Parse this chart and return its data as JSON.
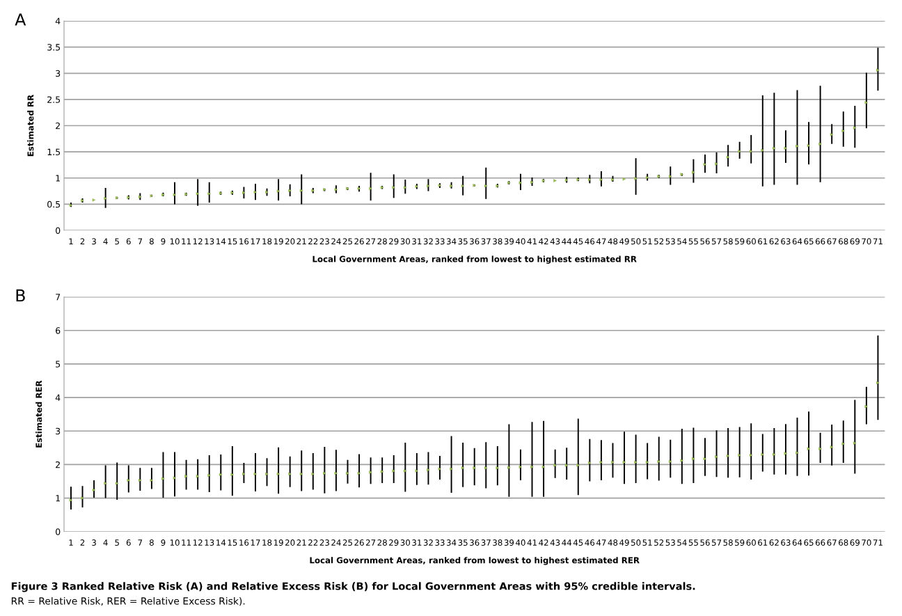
{
  "chart_data": [
    {
      "type": "scatter",
      "title": "A",
      "xlabel": "Local Government Areas, ranked from lowest to highest estimated RR",
      "ylabel": "Estimated RR",
      "categories": [
        "1",
        "2",
        "3",
        "4",
        "5",
        "6",
        "7",
        "8",
        "9",
        "10",
        "11",
        "12",
        "13",
        "14",
        "15",
        "16",
        "17",
        "18",
        "19",
        "20",
        "21",
        "22",
        "23",
        "24",
        "25",
        "26",
        "27",
        "28",
        "29",
        "30",
        "31",
        "32",
        "33",
        "34",
        "35",
        "36",
        "37",
        "38",
        "39",
        "40",
        "41",
        "42",
        "43",
        "44",
        "45",
        "46",
        "47",
        "48",
        "49",
        "50",
        "51",
        "52",
        "53",
        "54",
        "55",
        "56",
        "57",
        "58",
        "59",
        "60",
        "61",
        "62",
        "63",
        "64",
        "65",
        "66",
        "67",
        "68",
        "69",
        "70",
        "71"
      ],
      "series": [
        {
          "color": "#9bbb59",
          "values": [
            0.48,
            0.57,
            0.58,
            0.61,
            0.62,
            0.63,
            0.64,
            0.66,
            0.68,
            0.68,
            0.69,
            0.7,
            0.7,
            0.71,
            0.72,
            0.72,
            0.73,
            0.73,
            0.75,
            0.76,
            0.76,
            0.76,
            0.78,
            0.78,
            0.8,
            0.8,
            0.8,
            0.82,
            0.82,
            0.82,
            0.84,
            0.85,
            0.86,
            0.85,
            0.85,
            0.86,
            0.85,
            0.85,
            0.91,
            0.91,
            0.92,
            0.95,
            0.95,
            0.96,
            0.97,
            0.97,
            0.97,
            0.97,
            0.98,
            0.99,
            1.01,
            1.03,
            1.03,
            1.07,
            1.11,
            1.26,
            1.27,
            1.4,
            1.51,
            1.51,
            1.53,
            1.57,
            1.57,
            1.61,
            1.62,
            1.65,
            1.83,
            1.9,
            1.96,
            2.44,
            3.06
          ],
          "errors": [
            [
              0.45,
              0.53
            ],
            [
              0.53,
              0.61
            ],
            null,
            [
              0.43,
              0.81
            ],
            [
              0.6,
              0.64
            ],
            [
              0.59,
              0.67
            ],
            [
              0.58,
              0.71
            ],
            [
              0.64,
              0.68
            ],
            [
              0.65,
              0.72
            ],
            [
              0.5,
              0.92
            ],
            [
              0.66,
              0.72
            ],
            [
              0.47,
              0.98
            ],
            [
              0.53,
              0.92
            ],
            [
              0.68,
              0.74
            ],
            [
              0.68,
              0.76
            ],
            [
              0.61,
              0.83
            ],
            [
              0.58,
              0.89
            ],
            [
              0.66,
              0.8
            ],
            [
              0.57,
              0.98
            ],
            [
              0.65,
              0.88
            ],
            [
              0.5,
              1.07
            ],
            [
              0.71,
              0.81
            ],
            [
              0.75,
              0.8
            ],
            [
              0.71,
              0.86
            ],
            [
              0.77,
              0.82
            ],
            [
              0.74,
              0.85
            ],
            [
              0.57,
              1.1
            ],
            [
              0.79,
              0.85
            ],
            [
              0.62,
              1.07
            ],
            [
              0.7,
              0.97
            ],
            [
              0.79,
              0.89
            ],
            [
              0.75,
              0.98
            ],
            [
              0.81,
              0.9
            ],
            [
              0.8,
              0.92
            ],
            [
              0.67,
              1.04
            ],
            [
              0.84,
              0.88
            ],
            [
              0.6,
              1.2
            ],
            [
              0.82,
              0.89
            ],
            [
              0.88,
              0.94
            ],
            [
              0.77,
              1.08
            ],
            [
              0.85,
              1.01
            ],
            [
              0.92,
              0.98
            ],
            null,
            [
              0.91,
              1.02
            ],
            [
              0.94,
              1.01
            ],
            [
              0.9,
              1.06
            ],
            [
              0.84,
              1.13
            ],
            [
              0.93,
              1.04
            ],
            null,
            [
              0.68,
              1.38
            ],
            [
              0.95,
              1.08
            ],
            [
              1.0,
              1.06
            ],
            [
              0.87,
              1.22
            ],
            [
              1.04,
              1.09
            ],
            [
              0.91,
              1.36
            ],
            [
              1.1,
              1.45
            ],
            [
              1.09,
              1.49
            ],
            [
              1.22,
              1.63
            ],
            [
              1.37,
              1.69
            ],
            [
              1.28,
              1.82
            ],
            [
              0.84,
              2.58
            ],
            [
              0.87,
              2.63
            ],
            [
              1.29,
              1.91
            ],
            [
              0.87,
              2.68
            ],
            [
              1.26,
              2.07
            ],
            [
              0.92,
              2.76
            ],
            [
              1.65,
              2.03
            ],
            [
              1.6,
              2.27
            ],
            [
              1.58,
              2.38
            ],
            [
              1.95,
              3.01
            ],
            [
              2.67,
              3.49
            ]
          ]
        }
      ],
      "ylim": [
        0,
        4
      ],
      "yticks": [
        0,
        0.5,
        1,
        1.5,
        2,
        2.5,
        3,
        3.5,
        4
      ],
      "grid": "y",
      "marker": "triangle"
    },
    {
      "type": "scatter",
      "title": "B",
      "xlabel": "Local Government Areas, ranked from lowest to highest estimated RER",
      "ylabel": "Estimated RER",
      "categories": [
        "1",
        "2",
        "3",
        "4",
        "5",
        "6",
        "7",
        "8",
        "9",
        "10",
        "11",
        "12",
        "13",
        "14",
        "15",
        "16",
        "17",
        "18",
        "19",
        "20",
        "21",
        "22",
        "23",
        "24",
        "25",
        "26",
        "27",
        "28",
        "29",
        "30",
        "31",
        "32",
        "33",
        "34",
        "35",
        "36",
        "37",
        "38",
        "39",
        "40",
        "41",
        "42",
        "43",
        "44",
        "45",
        "46",
        "47",
        "48",
        "49",
        "50",
        "51",
        "52",
        "53",
        "54",
        "55",
        "56",
        "57",
        "58",
        "59",
        "60",
        "61",
        "62",
        "63",
        "64",
        "65",
        "66",
        "67",
        "68",
        "69",
        "70",
        "71"
      ],
      "series": [
        {
          "color": "#9bbb59",
          "values": [
            0.94,
            1.0,
            1.24,
            1.44,
            1.44,
            1.53,
            1.53,
            1.53,
            1.58,
            1.6,
            1.65,
            1.65,
            1.68,
            1.7,
            1.7,
            1.72,
            1.72,
            1.72,
            1.72,
            1.72,
            1.72,
            1.72,
            1.74,
            1.74,
            1.74,
            1.74,
            1.77,
            1.79,
            1.81,
            1.81,
            1.81,
            1.84,
            1.87,
            1.87,
            1.9,
            1.9,
            1.9,
            1.9,
            1.91,
            1.93,
            1.93,
            1.93,
            1.98,
            1.98,
            1.98,
            2.05,
            2.07,
            2.07,
            2.07,
            2.07,
            2.07,
            2.09,
            2.09,
            2.12,
            2.17,
            2.17,
            2.23,
            2.26,
            2.28,
            2.28,
            2.3,
            2.3,
            2.33,
            2.35,
            2.47,
            2.47,
            2.52,
            2.62,
            2.64,
            3.73,
            4.44
          ],
          "errors": [
            [
              0.66,
              1.34
            ],
            [
              0.72,
              1.36
            ],
            [
              1.01,
              1.53
            ],
            [
              1.0,
              1.98
            ],
            [
              0.95,
              2.06
            ],
            [
              1.17,
              1.98
            ],
            [
              1.22,
              1.9
            ],
            [
              1.27,
              1.9
            ],
            [
              1.01,
              2.37
            ],
            [
              1.05,
              2.37
            ],
            [
              1.25,
              2.14
            ],
            [
              1.25,
              2.16
            ],
            [
              1.18,
              2.28
            ],
            [
              1.23,
              2.3
            ],
            [
              1.07,
              2.55
            ],
            [
              1.45,
              2.05
            ],
            [
              1.2,
              2.34
            ],
            [
              1.36,
              2.19
            ],
            [
              1.13,
              2.51
            ],
            [
              1.33,
              2.24
            ],
            [
              1.21,
              2.42
            ],
            [
              1.25,
              2.34
            ],
            [
              1.14,
              2.53
            ],
            [
              1.21,
              2.44
            ],
            [
              1.43,
              2.14
            ],
            [
              1.32,
              2.31
            ],
            [
              1.42,
              2.21
            ],
            [
              1.45,
              2.21
            ],
            [
              1.45,
              2.28
            ],
            [
              1.19,
              2.65
            ],
            [
              1.39,
              2.34
            ],
            [
              1.4,
              2.37
            ],
            [
              1.55,
              2.26
            ],
            [
              1.16,
              2.85
            ],
            [
              1.33,
              2.65
            ],
            [
              1.38,
              2.49
            ],
            [
              1.29,
              2.67
            ],
            [
              1.38,
              2.55
            ],
            [
              1.04,
              3.2
            ],
            [
              1.53,
              2.45
            ],
            [
              1.04,
              3.27
            ],
            [
              1.04,
              3.3
            ],
            [
              1.6,
              2.45
            ],
            [
              1.55,
              2.5
            ],
            [
              1.09,
              3.37
            ],
            [
              1.5,
              2.76
            ],
            [
              1.53,
              2.73
            ],
            [
              1.61,
              2.64
            ],
            [
              1.42,
              2.98
            ],
            [
              1.45,
              2.89
            ],
            [
              1.56,
              2.64
            ],
            [
              1.52,
              2.83
            ],
            [
              1.61,
              2.74
            ],
            [
              1.42,
              3.07
            ],
            [
              1.45,
              3.1
            ],
            [
              1.66,
              2.79
            ],
            [
              1.63,
              3.02
            ],
            [
              1.61,
              3.09
            ],
            [
              1.62,
              3.12
            ],
            [
              1.55,
              3.23
            ],
            [
              1.79,
              2.91
            ],
            [
              1.7,
              3.09
            ],
            [
              1.7,
              3.21
            ],
            [
              1.66,
              3.4
            ],
            [
              1.67,
              3.58
            ],
            [
              2.05,
              2.95
            ],
            [
              1.97,
              3.19
            ],
            [
              2.05,
              3.31
            ],
            [
              1.73,
              3.93
            ],
            [
              3.2,
              4.32
            ],
            [
              3.33,
              5.85
            ]
          ]
        }
      ],
      "ylim": [
        0,
        7
      ],
      "yticks": [
        0,
        1,
        2,
        3,
        4,
        5,
        6,
        7
      ],
      "grid": "y",
      "marker": "triangle",
      "annotations": [
        "Figure 3 Ranked Relative Risk (A) and Relative Excess Risk (B) for Local Government Areas with 95% credible intervals.",
        "RR = Relative Risk, RER = Relative Excess Risk)."
      ]
    }
  ]
}
